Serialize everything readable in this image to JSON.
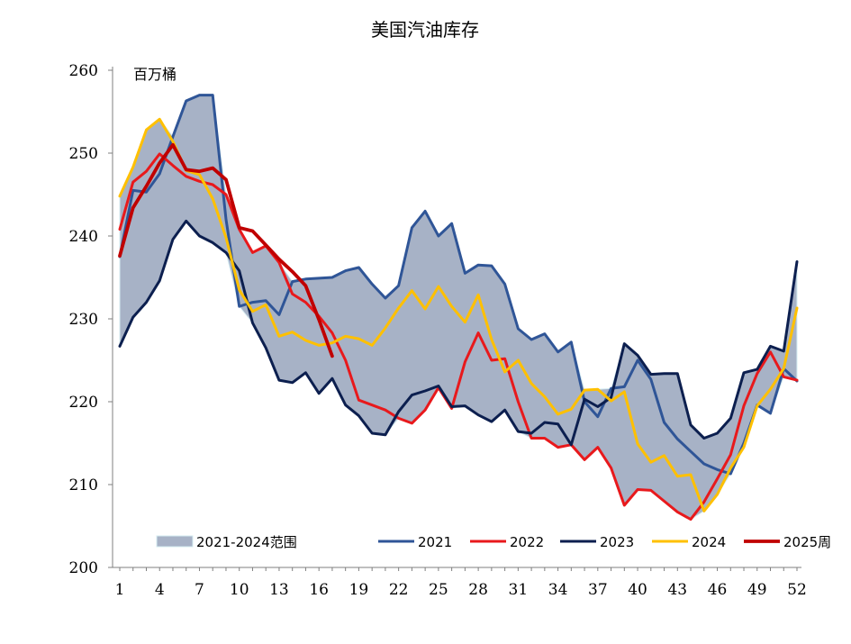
{
  "chart_data": {
    "type": "line",
    "title": "美国汽油库存",
    "unit_label": "百万桶",
    "ylim": [
      200,
      260
    ],
    "yticks": [
      200,
      210,
      220,
      230,
      240,
      250,
      260
    ],
    "xlim": [
      1,
      52
    ],
    "xticks": [
      1,
      4,
      7,
      10,
      13,
      16,
      19,
      22,
      25,
      28,
      31,
      34,
      37,
      40,
      43,
      46,
      49,
      52
    ],
    "grid": false,
    "legend_position": "bottom",
    "range_band": {
      "name": "2021-2024范围",
      "color": "#a7b2c6",
      "edge_color": "#d6ecf2",
      "lower_series": "2023",
      "upper_series": "2021"
    },
    "series": [
      {
        "name": "2021",
        "color": "#2f5597",
        "x": [
          1,
          2,
          3,
          4,
          5,
          6,
          7,
          8,
          9,
          10,
          11,
          12,
          13,
          14,
          15,
          16,
          17,
          18,
          19,
          20,
          21,
          22,
          23,
          24,
          25,
          26,
          27,
          28,
          29,
          30,
          31,
          32,
          33,
          34,
          35,
          36,
          37,
          38,
          39,
          40,
          41,
          42,
          43,
          44,
          45,
          46,
          47,
          48,
          49,
          50,
          51,
          52
        ],
        "y": [
          237.5,
          245.5,
          245.3,
          247.5,
          252,
          256.3,
          257,
          257,
          242,
          231.5,
          232,
          232.2,
          230.5,
          234.5,
          234.8,
          234.9,
          235,
          235.8,
          236.2,
          234.2,
          232.5,
          234,
          241,
          243,
          240,
          241.5,
          235.5,
          236.5,
          236.4,
          234.2,
          228.8,
          227.5,
          228.2,
          226,
          227.2,
          220,
          218.2,
          221.6,
          221.8,
          225,
          222.7,
          217.5,
          215.5,
          214,
          212.5,
          211.8,
          211.3,
          215,
          219.6,
          218.6,
          224,
          222.5
        ]
      },
      {
        "name": "2022",
        "color": "#e8191c",
        "x": [
          1,
          2,
          3,
          4,
          5,
          6,
          7,
          8,
          9,
          10,
          11,
          12,
          13,
          14,
          15,
          16,
          17,
          18,
          19,
          20,
          21,
          22,
          23,
          24,
          25,
          26,
          27,
          28,
          29,
          30,
          31,
          32,
          33,
          34,
          35,
          36,
          37,
          38,
          39,
          40,
          41,
          42,
          43,
          44,
          45,
          46,
          47,
          48,
          49,
          50,
          51,
          52
        ],
        "y": [
          240.8,
          246.5,
          247.8,
          249.9,
          248.5,
          247.2,
          246.6,
          246.2,
          245,
          240.8,
          238,
          238.8,
          236.8,
          233,
          232,
          230.3,
          228.3,
          225,
          220.2,
          219.6,
          219,
          218,
          217.4,
          219,
          221.7,
          219.2,
          224.8,
          228.3,
          225,
          225.2,
          220,
          215.6,
          215.6,
          214.5,
          214.8,
          213,
          214.5,
          212,
          207.5,
          209.4,
          209.3,
          208,
          206.7,
          205.8,
          207.9,
          210.7,
          213.6,
          219.5,
          223.4,
          226,
          223,
          222.6
        ]
      },
      {
        "name": "2023",
        "color": "#0c1f4f",
        "x": [
          1,
          2,
          3,
          4,
          5,
          6,
          7,
          8,
          9,
          10,
          11,
          12,
          13,
          14,
          15,
          16,
          17,
          18,
          19,
          20,
          21,
          22,
          23,
          24,
          25,
          26,
          27,
          28,
          29,
          30,
          31,
          32,
          33,
          34,
          35,
          36,
          37,
          38,
          39,
          40,
          41,
          42,
          43,
          44,
          45,
          46,
          47,
          48,
          49,
          50,
          51,
          52
        ],
        "y": [
          226.7,
          230.2,
          232,
          234.6,
          239.6,
          241.8,
          240,
          239.2,
          238,
          235.8,
          229.5,
          226.5,
          222.6,
          222.3,
          223.5,
          221,
          222.8,
          219.6,
          218.3,
          216.2,
          216,
          218.8,
          220.8,
          221.3,
          221.9,
          219.4,
          219.5,
          218.4,
          217.6,
          219,
          216.4,
          216.2,
          217.5,
          217.3,
          214.8,
          220.3,
          219.4,
          220.5,
          227,
          225.6,
          223.3,
          223.4,
          223.4,
          217.2,
          215.6,
          216.2,
          218,
          223.5,
          223.9,
          226.7,
          226.1,
          236.9
        ]
      },
      {
        "name": "2024",
        "color": "#ffc000",
        "x": [
          1,
          2,
          3,
          4,
          5,
          6,
          7,
          8,
          9,
          10,
          11,
          12,
          13,
          14,
          15,
          16,
          17,
          18,
          19,
          20,
          21,
          22,
          23,
          24,
          25,
          26,
          27,
          28,
          29,
          30,
          31,
          32,
          33,
          34,
          35,
          36,
          37,
          38,
          39,
          40,
          41,
          42,
          43,
          44,
          45,
          46,
          47,
          48,
          49,
          50,
          51,
          52
        ],
        "y": [
          244.8,
          248.3,
          252.8,
          254.1,
          251.4,
          247.9,
          247.4,
          244.5,
          239.8,
          233.5,
          230.9,
          231.7,
          227.9,
          228.4,
          227.4,
          226.8,
          227.1,
          227.9,
          227.6,
          226.8,
          228.9,
          231.3,
          233.4,
          231.2,
          233.9,
          231.5,
          229.6,
          232.9,
          227.5,
          223.6,
          225,
          222.2,
          220.6,
          218.5,
          219.1,
          221.4,
          221.5,
          220.1,
          221.2,
          214.9,
          212.7,
          213.5,
          211,
          211.2,
          206.8,
          208.8,
          212,
          214.5,
          219.5,
          221.5,
          224,
          231.3
        ]
      },
      {
        "name": "2025周",
        "color": "#c00000",
        "x": [
          1,
          2,
          3,
          4,
          5,
          6,
          7,
          8,
          9,
          10,
          11,
          12,
          13,
          14,
          15,
          16,
          17
        ],
        "y": [
          237.6,
          243.4,
          246,
          248.8,
          251,
          248,
          247.8,
          248.2,
          246.8,
          241,
          240.6,
          238.9,
          237.2,
          235.7,
          234,
          229.9,
          225.5
        ]
      }
    ]
  }
}
